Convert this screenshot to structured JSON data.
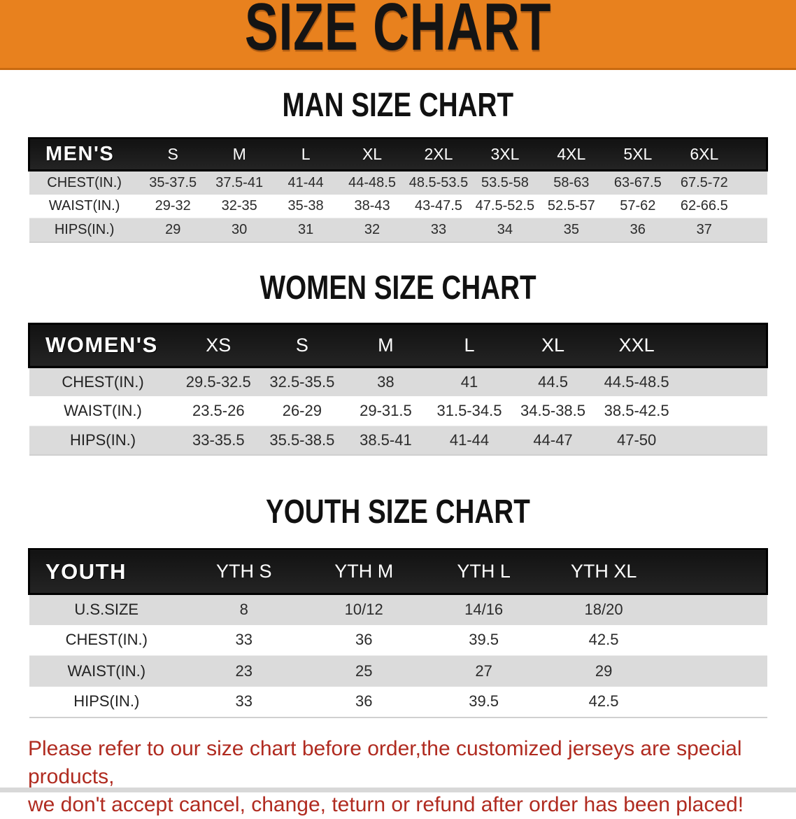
{
  "appearance": {
    "banner_bg": "#E8811E",
    "banner_edge": "#C96A10",
    "band": "#1B1B1B",
    "row_gray": "#DBDBDB",
    "disclaimer": "#B02B20"
  },
  "banner": {
    "title": "SIZE CHART"
  },
  "sections": [
    {
      "id": "men",
      "heading": "MAN SIZE CHART",
      "table": {
        "corner": "MEN'S",
        "columns": [
          "S",
          "M",
          "L",
          "XL",
          "2XL",
          "3XL",
          "4XL",
          "5XL",
          "6XL"
        ],
        "rows": [
          {
            "label": "CHEST(IN.)",
            "values": [
              "35-37.5",
              "37.5-41",
              "41-44",
              "44-48.5",
              "48.5-53.5",
              "53.5-58",
              "58-63",
              "63-67.5",
              "67.5-72"
            ]
          },
          {
            "label": "WAIST(IN.)",
            "values": [
              "29-32",
              "32-35",
              "35-38",
              "38-43",
              "43-47.5",
              "47.5-52.5",
              "52.5-57",
              "57-62",
              "62-66.5"
            ]
          },
          {
            "label": "HIPS(IN.)",
            "values": [
              "29",
              "30",
              "31",
              "32",
              "33",
              "34",
              "35",
              "36",
              "37"
            ]
          }
        ]
      }
    },
    {
      "id": "women",
      "heading": "WOMEN SIZE CHART",
      "table": {
        "corner": "WOMEN'S",
        "columns": [
          "XS",
          "S",
          "M",
          "L",
          "XL",
          "XXL"
        ],
        "rows": [
          {
            "label": "CHEST(IN.)",
            "values": [
              "29.5-32.5",
              "32.5-35.5",
              "38",
              "41",
              "44.5",
              "44.5-48.5"
            ]
          },
          {
            "label": "WAIST(IN.)",
            "values": [
              "23.5-26",
              "26-29",
              "29-31.5",
              "31.5-34.5",
              "34.5-38.5",
              "38.5-42.5"
            ]
          },
          {
            "label": "HIPS(IN.)",
            "values": [
              "33-35.5",
              "35.5-38.5",
              "38.5-41",
              "41-44",
              "44-47",
              "47-50"
            ]
          }
        ]
      }
    },
    {
      "id": "youth",
      "heading": "YOUTH SIZE CHART",
      "table": {
        "corner": "YOUTH",
        "columns": [
          "YTH S",
          "YTH M",
          "YTH L",
          "YTH XL"
        ],
        "rows": [
          {
            "label": "U.S.SIZE",
            "values": [
              "8",
              "10/12",
              "14/16",
              "18/20"
            ]
          },
          {
            "label": "CHEST(IN.)",
            "values": [
              "33",
              "36",
              "39.5",
              "42.5"
            ]
          },
          {
            "label": "WAIST(IN.)",
            "values": [
              "23",
              "25",
              "27",
              "29"
            ]
          },
          {
            "label": "HIPS(IN.)",
            "values": [
              "33",
              "36",
              "39.5",
              "42.5"
            ]
          }
        ]
      }
    }
  ],
  "disclaimer": {
    "line1": "Please refer to our size chart before order,the customized jerseys are special products,",
    "line2": "we don't accept cancel, change, teturn or refund after order has been placed!"
  }
}
